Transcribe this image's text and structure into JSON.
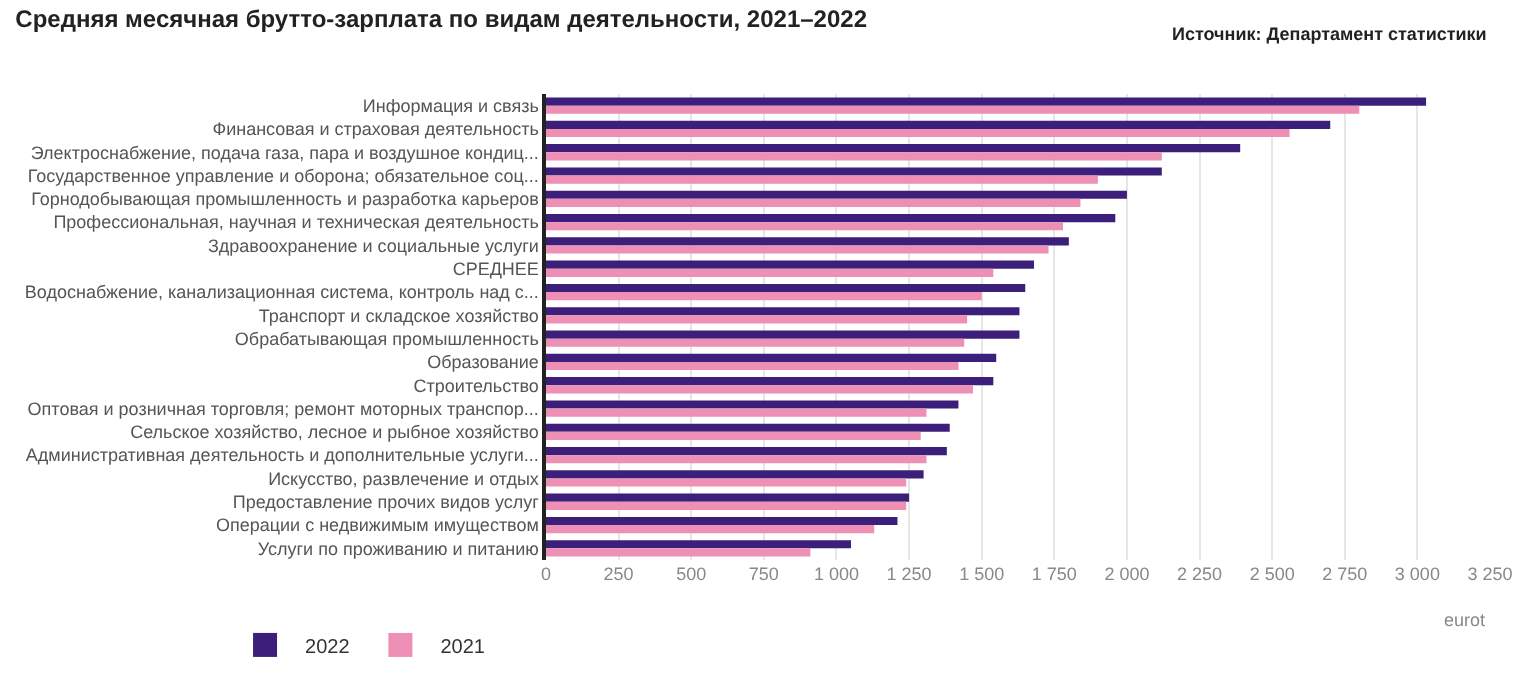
{
  "chart_data": {
    "type": "bar",
    "orientation": "horizontal",
    "title": "Средняя месячная брутто-зарплата по видам деятельности, 2021–2022",
    "annotations": [
      "Источник: Департамент статистики"
    ],
    "xlabel": "eurot",
    "categories": [
      "Информация и связь",
      "Финансовая и страховая деятельность",
      "Электроснабжение, подача газа, пара и воздушное кондиц...",
      "Государственное управление и оборона; обязательное соц...",
      "Горнодобывающая промышленность и разработка карьеров",
      "Профессиональная, научная и техническая деятельность",
      "Здравоохранение и социальные услуги",
      "СРЕДНЕЕ",
      "Водоснабжение, канализационная система, контроль над с...",
      "Транспорт и складское хозяйство",
      "Обрабатывающая промышленность",
      "Образование",
      "Строительство",
      "Оптовая и розничная торговля; ремонт моторных транспор...",
      "Сельское хозяйство, лесное и рыбное хозяйство",
      "Административная деятельность и дополнительные услуги...",
      "Искусство, развлечение и отдых",
      "Предоставление прочих видов услуг",
      "Операции с недвижимым имуществом",
      "Услуги по проживанию и питанию"
    ],
    "series": [
      {
        "name": "2022",
        "color": "#3b1f7a",
        "values": [
          3030,
          2700,
          2390,
          2120,
          2000,
          1960,
          1800,
          1680,
          1650,
          1630,
          1630,
          1550,
          1540,
          1420,
          1390,
          1380,
          1300,
          1250,
          1210,
          1050
        ]
      },
      {
        "name": "2021",
        "color": "#ee8fb5",
        "values": [
          2800,
          2560,
          2120,
          1900,
          1840,
          1780,
          1730,
          1540,
          1500,
          1450,
          1440,
          1420,
          1470,
          1310,
          1290,
          1310,
          1240,
          1240,
          1130,
          910
        ]
      }
    ],
    "xlim": [
      0,
      3250
    ],
    "xticks": [
      0,
      250,
      500,
      750,
      {
        "value": 1000,
        "label": "1 000"
      },
      {
        "value": 1250,
        "label": "1 250"
      },
      {
        "value": 1500,
        "label": "1 500"
      },
      {
        "value": 1750,
        "label": "1 750"
      },
      {
        "value": 2000,
        "label": "2 000"
      },
      {
        "value": 2250,
        "label": "2 250"
      },
      {
        "value": 2500,
        "label": "2 500"
      },
      {
        "value": 2750,
        "label": "2 750"
      },
      {
        "value": 3000,
        "label": "3 000"
      },
      {
        "value": 3250,
        "label": "3 250"
      }
    ],
    "grid": "x",
    "legend": "bottom left"
  }
}
